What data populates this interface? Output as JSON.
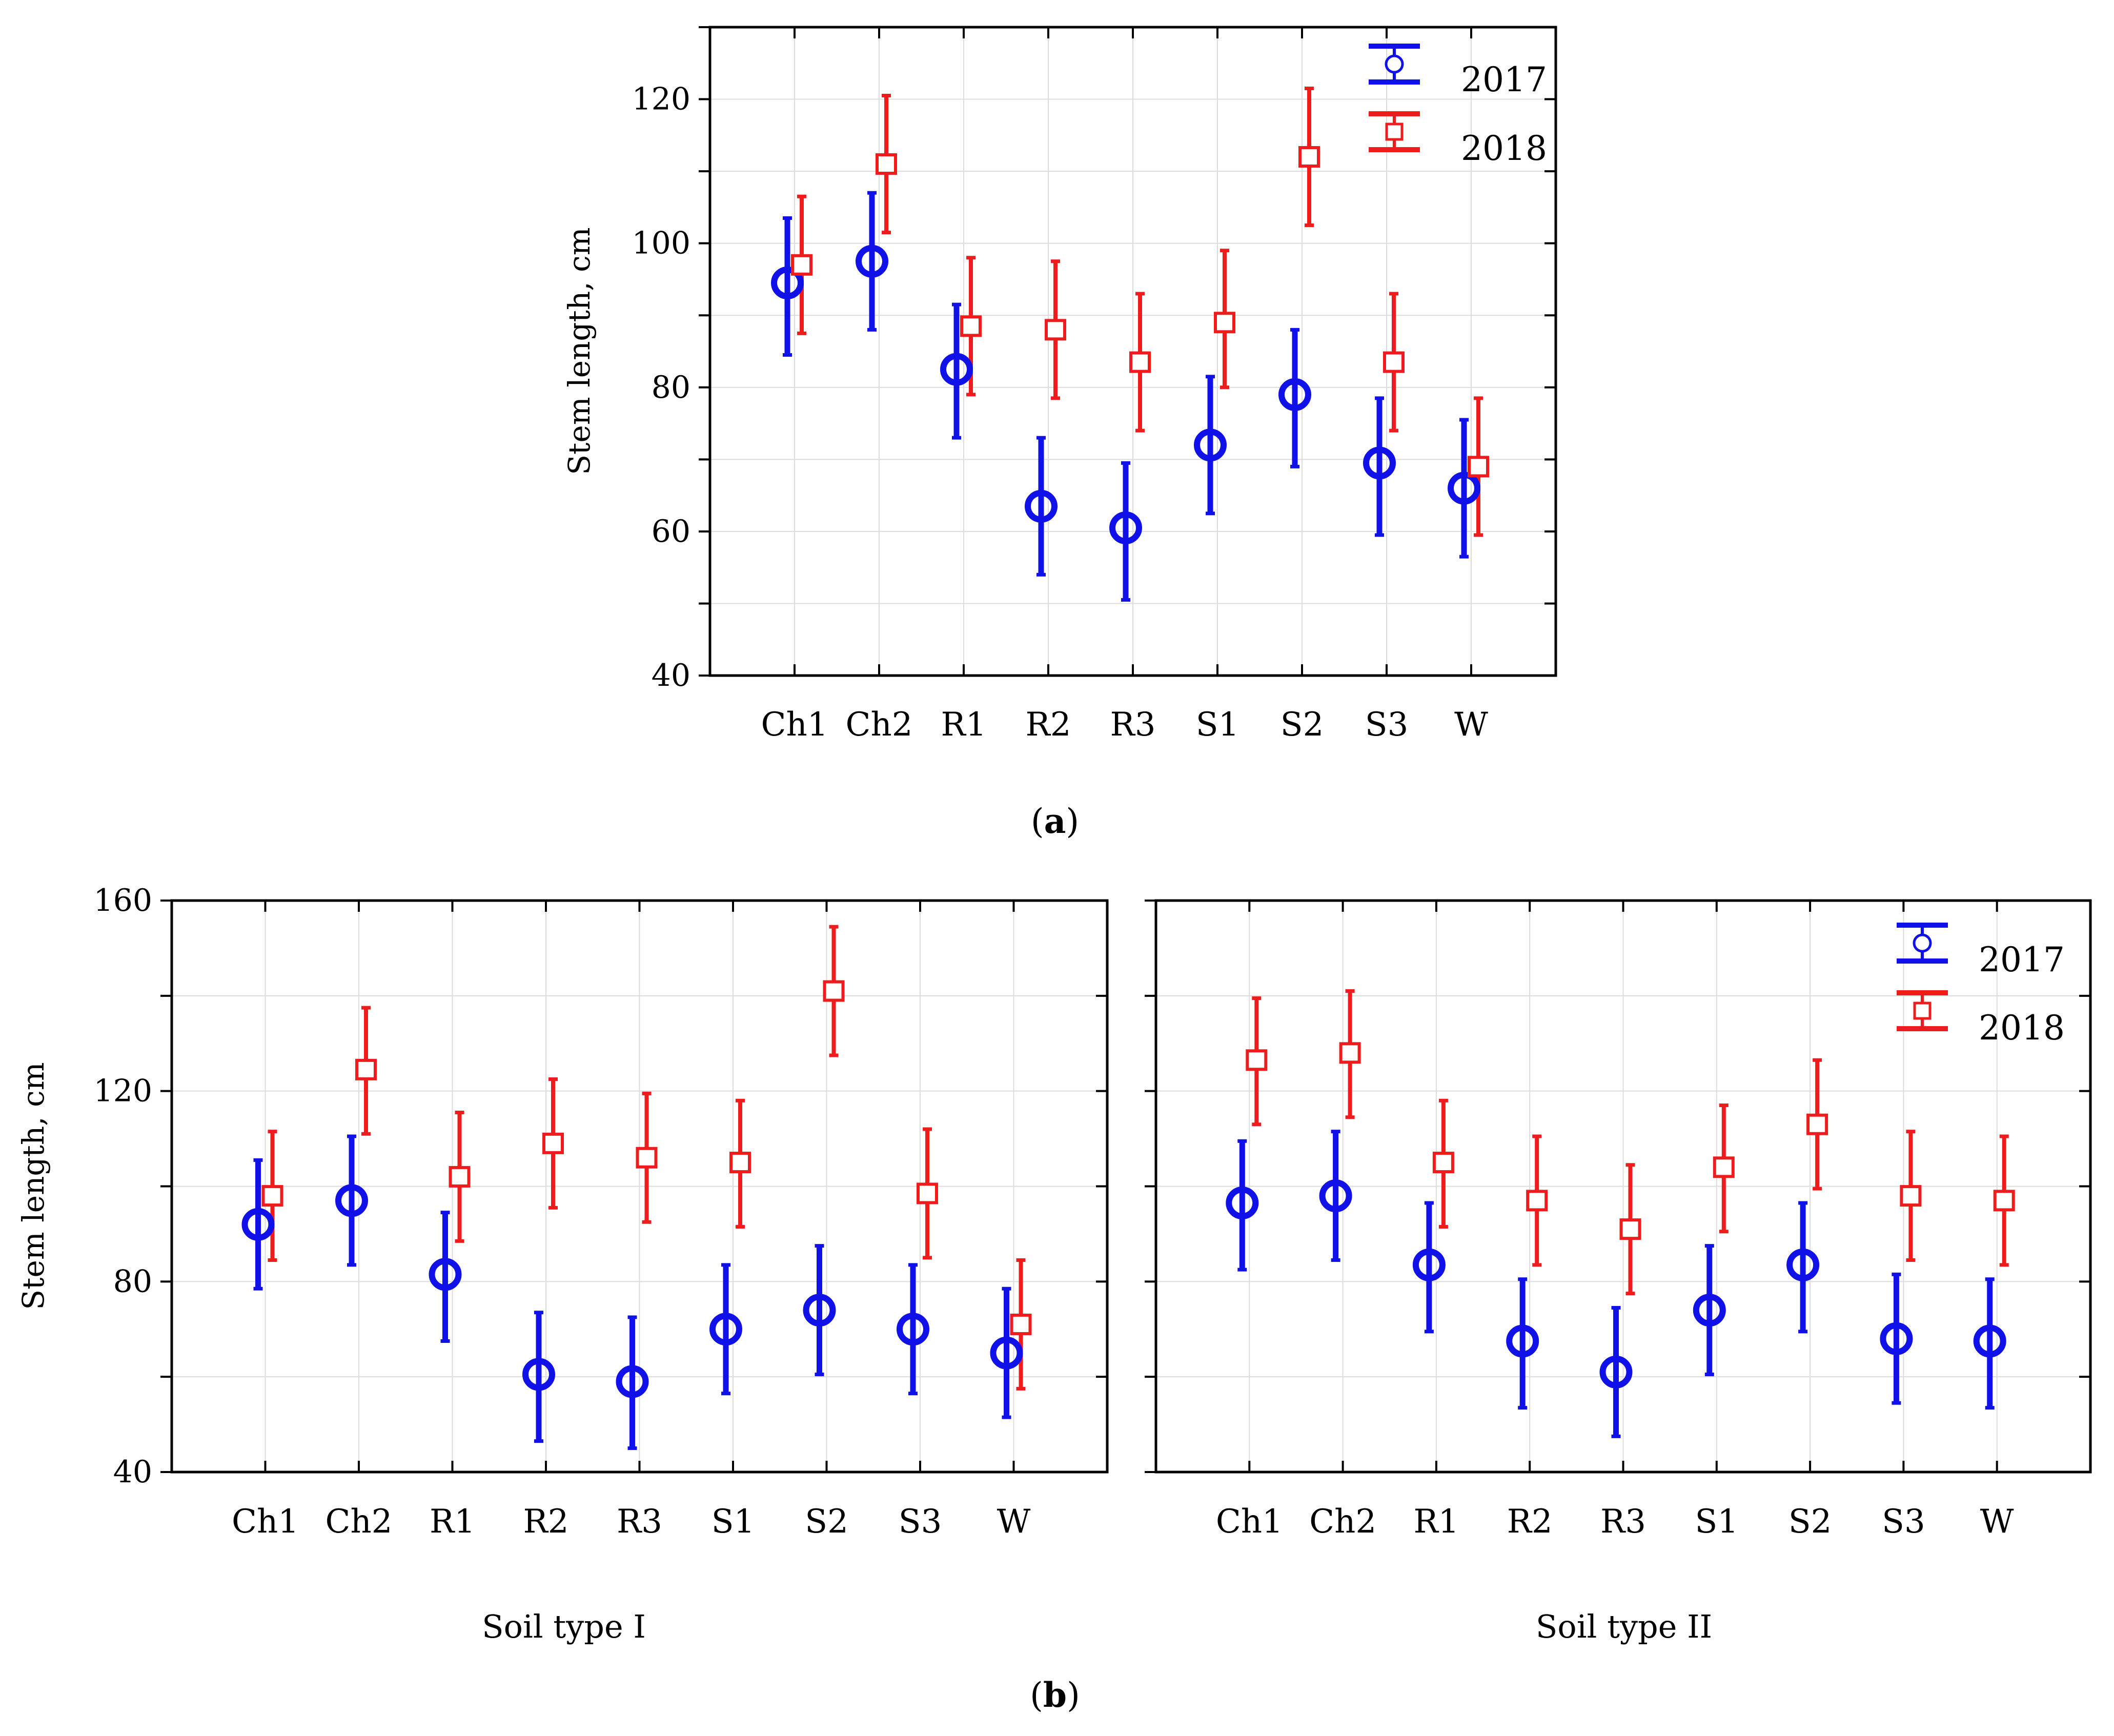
{
  "figure": {
    "panel_a_caption": "a",
    "panel_b_caption": "b",
    "ylabel": "Stem length, cm",
    "colors": {
      "y2017": "#1010e8",
      "y2018": "#ee1c1c",
      "grid": "#dcdcdc",
      "axis": "#000000"
    },
    "legend_entries": [
      "2017",
      "2018"
    ]
  },
  "chart_data": [
    {
      "type": "scatter",
      "subtype": "error-bars",
      "panel": "a",
      "title": "",
      "xlabel": "",
      "ylabel": "Stem length, cm",
      "categories": [
        "Ch1",
        "Ch2",
        "R1",
        "R2",
        "R3",
        "S1",
        "S2",
        "S3",
        "W"
      ],
      "ylim": [
        40,
        130
      ],
      "yticks": [
        40,
        60,
        80,
        100,
        120
      ],
      "grid": true,
      "legend": "top-right",
      "series": [
        {
          "name": "2017",
          "marker": "circle",
          "values": [
            94.5,
            97.5,
            82.5,
            63.5,
            60.5,
            72,
            79,
            69.5,
            66
          ],
          "lower": [
            84.5,
            88,
            73,
            54,
            50.5,
            62.5,
            69,
            59.5,
            56.5
          ],
          "upper": [
            103.5,
            107,
            91.5,
            73,
            69.5,
            81.5,
            88,
            78.5,
            75.5
          ]
        },
        {
          "name": "2018",
          "marker": "square",
          "values": [
            97,
            111,
            88.5,
            88,
            83.5,
            89,
            112,
            83.5,
            69
          ],
          "lower": [
            87.5,
            101.5,
            79,
            78.5,
            74,
            80,
            102.5,
            74,
            59.5
          ],
          "upper": [
            106.5,
            120.5,
            98,
            97.5,
            93,
            99,
            121.5,
            93,
            78.5
          ]
        }
      ]
    },
    {
      "type": "scatter",
      "subtype": "error-bars",
      "panel": "b-left",
      "title": "",
      "xlabel": "Soil type I",
      "ylabel": "Stem length, cm",
      "categories": [
        "Ch1",
        "Ch2",
        "R1",
        "R2",
        "R3",
        "S1",
        "S2",
        "S3",
        "W"
      ],
      "ylim": [
        40,
        160
      ],
      "yticks": [
        40,
        80,
        120,
        160
      ],
      "grid": true,
      "series": [
        {
          "name": "2017",
          "marker": "circle",
          "values": [
            92,
            97,
            81.5,
            60.5,
            59,
            70,
            74,
            70,
            65
          ],
          "lower": [
            78.5,
            83.5,
            67.5,
            46.5,
            45,
            56.5,
            60.5,
            56.5,
            51.5
          ],
          "upper": [
            105.5,
            110.5,
            94.5,
            73.5,
            72.5,
            83.5,
            87.5,
            83.5,
            78.5
          ]
        },
        {
          "name": "2018",
          "marker": "square",
          "values": [
            98,
            124.5,
            102,
            109,
            106,
            105,
            141,
            98.5,
            71
          ],
          "lower": [
            84.5,
            111,
            88.5,
            95.5,
            92.5,
            91.5,
            127.5,
            85,
            57.5
          ],
          "upper": [
            111.5,
            137.5,
            115.5,
            122.5,
            119.5,
            118,
            154.5,
            112,
            84.5
          ]
        }
      ]
    },
    {
      "type": "scatter",
      "subtype": "error-bars",
      "panel": "b-right",
      "title": "",
      "xlabel": "Soil type II",
      "ylabel": "",
      "categories": [
        "Ch1",
        "Ch2",
        "R1",
        "R2",
        "R3",
        "S1",
        "S2",
        "S3",
        "W"
      ],
      "ylim": [
        40,
        160
      ],
      "yticks": [
        40,
        80,
        120,
        160
      ],
      "grid": true,
      "legend": "top-right",
      "series": [
        {
          "name": "2017",
          "marker": "circle",
          "values": [
            96.5,
            98,
            83.5,
            67.5,
            61,
            74,
            83.5,
            68,
            67.5
          ],
          "lower": [
            82.5,
            84.5,
            69.5,
            53.5,
            47.5,
            60.5,
            69.5,
            54.5,
            53.5
          ],
          "upper": [
            109.5,
            111.5,
            96.5,
            80.5,
            74.5,
            87.5,
            96.5,
            81.5,
            80.5
          ]
        },
        {
          "name": "2018",
          "marker": "square",
          "values": [
            126.5,
            128,
            105,
            97,
            91,
            104,
            113,
            98,
            97
          ],
          "lower": [
            113,
            114.5,
            91.5,
            83.5,
            77.5,
            90.5,
            99.5,
            84.5,
            83.5
          ],
          "upper": [
            139.5,
            141,
            118,
            110.5,
            104.5,
            117,
            126.5,
            111.5,
            110.5
          ]
        }
      ]
    }
  ]
}
